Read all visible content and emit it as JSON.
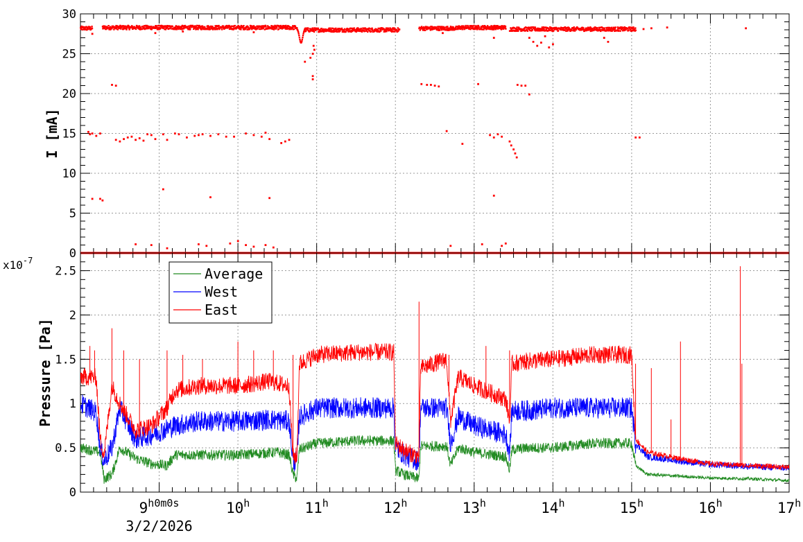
{
  "chart_data": [
    {
      "type": "scatter",
      "ylabel": "I [mA]",
      "ylim": [
        0,
        30
      ],
      "y_ticks": [
        "0",
        "5",
        "10",
        "15",
        "20",
        "25",
        "30"
      ],
      "xlim": [
        8,
        17
      ],
      "grid": true,
      "series": [
        {
          "color": "#ff0000",
          "main_band": [
            [
              8.0,
              8.15,
              28.2
            ],
            [
              8.28,
              10.75,
              28.3
            ],
            [
              10.85,
              12.05,
              28.0
            ],
            [
              12.3,
              12.8,
              28.2
            ],
            [
              12.8,
              13.4,
              28.3
            ],
            [
              13.45,
              15.05,
              28.1
            ]
          ],
          "zero_band": [
            [
              8.0,
              17.0,
              0
            ]
          ],
          "points": [
            [
              8.1,
              15.2
            ],
            [
              8.12,
              14.9
            ],
            [
              8.15,
              15.0
            ],
            [
              8.2,
              14.7
            ],
            [
              8.25,
              15.0
            ],
            [
              8.45,
              14.2
            ],
            [
              8.5,
              14.0
            ],
            [
              8.55,
              14.3
            ],
            [
              8.6,
              14.5
            ],
            [
              8.65,
              14.6
            ],
            [
              8.7,
              14.2
            ],
            [
              8.75,
              14.4
            ],
            [
              8.8,
              14.1
            ],
            [
              8.85,
              14.9
            ],
            [
              8.9,
              14.8
            ],
            [
              8.95,
              14.3
            ],
            [
              9.05,
              14.9
            ],
            [
              9.1,
              14.2
            ],
            [
              9.2,
              15.0
            ],
            [
              9.25,
              14.9
            ],
            [
              9.35,
              14.5
            ],
            [
              9.45,
              14.7
            ],
            [
              9.5,
              14.8
            ],
            [
              9.55,
              14.9
            ],
            [
              9.65,
              14.7
            ],
            [
              9.75,
              14.9
            ],
            [
              9.85,
              14.6
            ],
            [
              9.95,
              14.6
            ],
            [
              10.1,
              15.0
            ],
            [
              10.2,
              14.8
            ],
            [
              10.3,
              14.6
            ],
            [
              10.35,
              15.1
            ],
            [
              10.4,
              14.3
            ],
            [
              10.55,
              13.8
            ],
            [
              10.6,
              14.0
            ],
            [
              10.65,
              14.2
            ],
            [
              8.15,
              6.8
            ],
            [
              8.25,
              6.8
            ],
            [
              8.28,
              6.6
            ],
            [
              9.05,
              8.0
            ],
            [
              9.65,
              7.0
            ],
            [
              10.4,
              6.9
            ],
            [
              8.4,
              21.1
            ],
            [
              8.45,
              21.0
            ],
            [
              10.95,
              21.8
            ],
            [
              10.95,
              22.2
            ],
            [
              10.92,
              24.5
            ],
            [
              10.95,
              25.0
            ],
            [
              10.97,
              25.5
            ],
            [
              10.96,
              26.0
            ],
            [
              10.85,
              24.0
            ],
            [
              12.33,
              21.2
            ],
            [
              12.4,
              21.1
            ],
            [
              12.45,
              21.1
            ],
            [
              12.5,
              21.0
            ],
            [
              12.55,
              20.9
            ],
            [
              13.05,
              21.2
            ],
            [
              13.55,
              21.1
            ],
            [
              13.6,
              21.0
            ],
            [
              13.65,
              21.0
            ],
            [
              13.7,
              19.9
            ],
            [
              12.65,
              15.3
            ],
            [
              12.85,
              13.7
            ],
            [
              13.2,
              14.8
            ],
            [
              13.25,
              14.5
            ],
            [
              13.3,
              14.9
            ],
            [
              13.35,
              14.6
            ],
            [
              13.45,
              14.0
            ],
            [
              13.47,
              13.5
            ],
            [
              13.5,
              13.0
            ],
            [
              13.52,
              12.5
            ],
            [
              13.54,
              12.0
            ],
            [
              13.25,
              7.2
            ],
            [
              15.05,
              14.5
            ],
            [
              15.1,
              14.5
            ],
            [
              15.25,
              28.2
            ],
            [
              15.45,
              28.3
            ],
            [
              16.45,
              28.2
            ],
            [
              15.15,
              28.1
            ],
            [
              8.15,
              27.5
            ],
            [
              8.95,
              27.6
            ],
            [
              9.3,
              27.8
            ],
            [
              10.2,
              27.7
            ],
            [
              12.6,
              27.6
            ],
            [
              13.25,
              27.0
            ],
            [
              13.7,
              27.0
            ],
            [
              13.75,
              26.5
            ],
            [
              13.8,
              26.0
            ],
            [
              13.85,
              26.4
            ],
            [
              13.9,
              27.2
            ],
            [
              13.95,
              25.8
            ],
            [
              14.0,
              26.2
            ],
            [
              14.65,
              27.0
            ],
            [
              14.7,
              26.5
            ],
            [
              9.9,
              1.2
            ],
            [
              10.0,
              1.5
            ],
            [
              10.1,
              1.0
            ],
            [
              10.2,
              0.8
            ],
            [
              10.35,
              1.0
            ],
            [
              10.45,
              0.7
            ],
            [
              8.7,
              1.1
            ],
            [
              8.9,
              1.0
            ],
            [
              9.1,
              0.6
            ],
            [
              12.7,
              0.9
            ],
            [
              13.1,
              1.1
            ],
            [
              13.35,
              0.9
            ],
            [
              13.4,
              1.2
            ],
            [
              9.6,
              0.9
            ],
            [
              9.5,
              1.1
            ]
          ]
        }
      ]
    },
    {
      "type": "line",
      "ylabel": "Pressure [Pa]",
      "scale_label": "x10",
      "scale_exponent": "-7",
      "ylim": [
        0,
        2.7
      ],
      "y_ticks": [
        "0",
        "0.5",
        "1",
        "1.5",
        "2",
        "2.5"
      ],
      "xlim": [
        8,
        17
      ],
      "x_ticks": [
        {
          "x": 9,
          "label": "9",
          "suffix": "h0m0s"
        },
        {
          "x": 10,
          "label": "10",
          "suffix": "h"
        },
        {
          "x": 11,
          "label": "11",
          "suffix": "h"
        },
        {
          "x": 12,
          "label": "12",
          "suffix": "h"
        },
        {
          "x": 13,
          "label": "13",
          "suffix": "h"
        },
        {
          "x": 14,
          "label": "14",
          "suffix": "h"
        },
        {
          "x": 15,
          "label": "15",
          "suffix": "h"
        },
        {
          "x": 16,
          "label": "16",
          "suffix": "h"
        },
        {
          "x": 17,
          "label": "17",
          "suffix": "h"
        }
      ],
      "date_label": "3/2/2026",
      "grid": true,
      "legend_position": "top-left",
      "series": [
        {
          "name": "Average",
          "color": "#228b22",
          "keypoints": [
            [
              8.0,
              0.5
            ],
            [
              8.25,
              0.45
            ],
            [
              8.3,
              0.15
            ],
            [
              8.4,
              0.2
            ],
            [
              8.5,
              0.5
            ],
            [
              8.7,
              0.38
            ],
            [
              8.9,
              0.32
            ],
            [
              9.1,
              0.3
            ],
            [
              9.2,
              0.42
            ],
            [
              9.5,
              0.42
            ],
            [
              10.0,
              0.42
            ],
            [
              10.5,
              0.45
            ],
            [
              10.65,
              0.42
            ],
            [
              10.7,
              0.2
            ],
            [
              10.75,
              0.15
            ],
            [
              10.78,
              0.48
            ],
            [
              11.0,
              0.55
            ],
            [
              11.5,
              0.58
            ],
            [
              11.98,
              0.58
            ],
            [
              12.0,
              0.25
            ],
            [
              12.1,
              0.2
            ],
            [
              12.3,
              0.15
            ],
            [
              12.32,
              0.52
            ],
            [
              12.65,
              0.52
            ],
            [
              12.7,
              0.3
            ],
            [
              12.8,
              0.5
            ],
            [
              13.0,
              0.45
            ],
            [
              13.4,
              0.4
            ],
            [
              13.45,
              0.25
            ],
            [
              13.48,
              0.48
            ],
            [
              13.7,
              0.5
            ],
            [
              14.0,
              0.5
            ],
            [
              14.5,
              0.55
            ],
            [
              15.0,
              0.55
            ],
            [
              15.05,
              0.3
            ],
            [
              15.2,
              0.2
            ],
            [
              15.6,
              0.18
            ],
            [
              16.0,
              0.16
            ],
            [
              16.5,
              0.15
            ],
            [
              17.0,
              0.13
            ]
          ],
          "noise": 0.06
        },
        {
          "name": "West",
          "color": "#0000ff",
          "keypoints": [
            [
              8.0,
              1.0
            ],
            [
              8.2,
              0.9
            ],
            [
              8.25,
              0.5
            ],
            [
              8.3,
              0.35
            ],
            [
              8.4,
              0.5
            ],
            [
              8.5,
              0.95
            ],
            [
              8.7,
              0.6
            ],
            [
              8.9,
              0.65
            ],
            [
              9.2,
              0.75
            ],
            [
              9.5,
              0.8
            ],
            [
              10.0,
              0.8
            ],
            [
              10.4,
              0.82
            ],
            [
              10.65,
              0.8
            ],
            [
              10.7,
              0.35
            ],
            [
              10.75,
              0.35
            ],
            [
              10.78,
              0.85
            ],
            [
              11.0,
              0.95
            ],
            [
              11.5,
              0.95
            ],
            [
              11.98,
              0.95
            ],
            [
              12.0,
              0.5
            ],
            [
              12.15,
              0.4
            ],
            [
              12.3,
              0.35
            ],
            [
              12.32,
              0.95
            ],
            [
              12.65,
              0.95
            ],
            [
              12.7,
              0.55
            ],
            [
              12.8,
              0.85
            ],
            [
              13.0,
              0.75
            ],
            [
              13.4,
              0.65
            ],
            [
              13.45,
              0.45
            ],
            [
              13.48,
              0.92
            ],
            [
              13.7,
              0.92
            ],
            [
              14.0,
              0.95
            ],
            [
              14.5,
              0.95
            ],
            [
              15.0,
              0.95
            ],
            [
              15.05,
              0.55
            ],
            [
              15.2,
              0.4
            ],
            [
              15.6,
              0.35
            ],
            [
              16.0,
              0.31
            ],
            [
              16.5,
              0.29
            ],
            [
              17.0,
              0.27
            ]
          ],
          "noise": 0.12
        },
        {
          "name": "East",
          "color": "#ff0000",
          "keypoints": [
            [
              8.0,
              1.3
            ],
            [
              8.2,
              1.3
            ],
            [
              8.25,
              0.6
            ],
            [
              8.3,
              0.42
            ],
            [
              8.4,
              1.2
            ],
            [
              8.5,
              1.0
            ],
            [
              8.7,
              0.7
            ],
            [
              8.9,
              0.75
            ],
            [
              9.1,
              0.95
            ],
            [
              9.2,
              1.15
            ],
            [
              9.5,
              1.2
            ],
            [
              10.0,
              1.2
            ],
            [
              10.4,
              1.25
            ],
            [
              10.65,
              1.2
            ],
            [
              10.7,
              0.4
            ],
            [
              10.75,
              0.4
            ],
            [
              10.78,
              1.45
            ],
            [
              11.0,
              1.55
            ],
            [
              11.5,
              1.58
            ],
            [
              11.98,
              1.58
            ],
            [
              12.0,
              0.55
            ],
            [
              12.15,
              0.45
            ],
            [
              12.3,
              0.4
            ],
            [
              12.32,
              1.4
            ],
            [
              12.65,
              1.5
            ],
            [
              12.7,
              0.8
            ],
            [
              12.8,
              1.3
            ],
            [
              13.0,
              1.2
            ],
            [
              13.4,
              1.05
            ],
            [
              13.45,
              0.8
            ],
            [
              13.48,
              1.45
            ],
            [
              13.7,
              1.48
            ],
            [
              14.0,
              1.5
            ],
            [
              14.5,
              1.55
            ],
            [
              15.0,
              1.55
            ],
            [
              15.05,
              0.6
            ],
            [
              15.2,
              0.45
            ],
            [
              15.6,
              0.38
            ],
            [
              16.0,
              0.32
            ],
            [
              16.5,
              0.3
            ],
            [
              17.0,
              0.28
            ]
          ],
          "noise": 0.1,
          "spikes": [
            [
              8.12,
              1.65
            ],
            [
              8.18,
              1.6
            ],
            [
              8.4,
              1.85
            ],
            [
              8.55,
              1.6
            ],
            [
              8.75,
              1.5
            ],
            [
              9.1,
              1.6
            ],
            [
              9.3,
              1.55
            ],
            [
              9.55,
              1.5
            ],
            [
              10.0,
              1.7
            ],
            [
              10.2,
              1.6
            ],
            [
              10.45,
              1.6
            ],
            [
              10.7,
              1.55
            ],
            [
              12.3,
              2.15
            ],
            [
              12.68,
              1.55
            ],
            [
              13.15,
              1.65
            ],
            [
              13.45,
              1.6
            ],
            [
              15.05,
              1.45
            ],
            [
              15.25,
              1.4
            ],
            [
              15.5,
              0.82
            ],
            [
              15.62,
              1.7
            ],
            [
              16.38,
              2.55
            ],
            [
              16.4,
              1.45
            ]
          ]
        }
      ]
    }
  ]
}
